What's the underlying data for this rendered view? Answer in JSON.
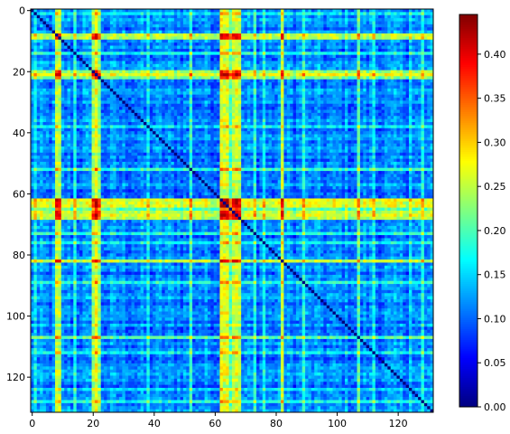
{
  "chart_data": {
    "type": "heatmap",
    "title": "",
    "xlabel": "",
    "ylabel": "",
    "n": 132,
    "xlim": [
      -0.5,
      131.5
    ],
    "ylim": [
      131.5,
      -0.5
    ],
    "x_ticks": [
      0,
      20,
      40,
      60,
      80,
      100,
      120
    ],
    "y_ticks": [
      0,
      20,
      40,
      60,
      80,
      100,
      120
    ],
    "x_tick_labels": [
      "0",
      "20",
      "40",
      "60",
      "80",
      "100",
      "120"
    ],
    "y_tick_labels": [
      "0",
      "20",
      "40",
      "60",
      "80",
      "100",
      "120"
    ],
    "colormap": "jet",
    "colorbar": {
      "range": [
        0.0,
        0.445
      ],
      "ticks": [
        0.0,
        0.05,
        0.1,
        0.15,
        0.2,
        0.25,
        0.3,
        0.35,
        0.4
      ],
      "tick_labels": [
        "0.00",
        "0.05",
        "0.10",
        "0.15",
        "0.20",
        "0.25",
        "0.30",
        "0.35",
        "0.40"
      ]
    },
    "diagonal_value": 0.0,
    "background_value": 0.11,
    "structure_note": "symmetric distance-like matrix; zero diagonal; high-value bands at indices listed below",
    "bright_indices": [
      {
        "index": 1,
        "strength": 0.06
      },
      {
        "index": 8,
        "strength": 0.13
      },
      {
        "index": 9,
        "strength": 0.12
      },
      {
        "index": 14,
        "strength": 0.06
      },
      {
        "index": 20,
        "strength": 0.14
      },
      {
        "index": 21,
        "strength": 0.16
      },
      {
        "index": 22,
        "strength": 0.1
      },
      {
        "index": 38,
        "strength": 0.04
      },
      {
        "index": 52,
        "strength": 0.07
      },
      {
        "index": 62,
        "strength": 0.15
      },
      {
        "index": 63,
        "strength": 0.17
      },
      {
        "index": 64,
        "strength": 0.16
      },
      {
        "index": 65,
        "strength": 0.1
      },
      {
        "index": 66,
        "strength": 0.14
      },
      {
        "index": 67,
        "strength": 0.16
      },
      {
        "index": 68,
        "strength": 0.12
      },
      {
        "index": 73,
        "strength": 0.06
      },
      {
        "index": 76,
        "strength": 0.06
      },
      {
        "index": 82,
        "strength": 0.15
      },
      {
        "index": 89,
        "strength": 0.07
      },
      {
        "index": 107,
        "strength": 0.08
      },
      {
        "index": 112,
        "strength": 0.06
      },
      {
        "index": 124,
        "strength": 0.05
      },
      {
        "index": 128,
        "strength": 0.06
      }
    ]
  }
}
